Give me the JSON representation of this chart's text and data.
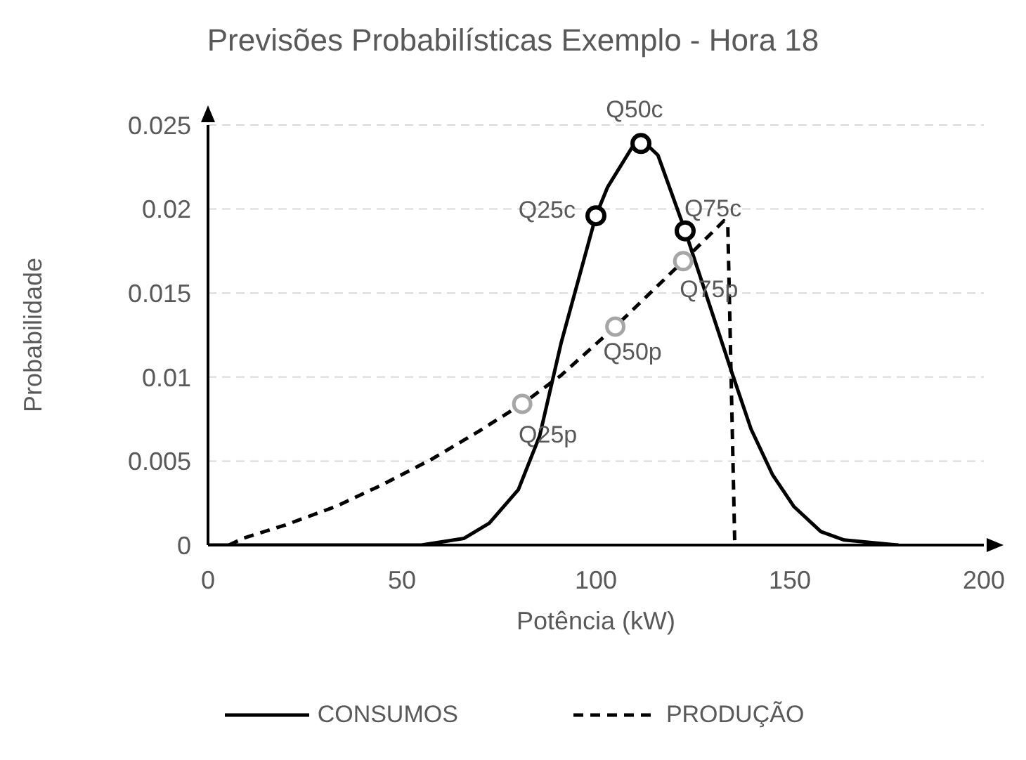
{
  "chart_data": {
    "type": "line",
    "title": "Previsões Probabilísticas Exemplo - Hora 18",
    "xlabel": "Potência (kW)",
    "ylabel": "Probabilidade",
    "xlim": [
      0,
      200
    ],
    "xticks": [
      0,
      50,
      100,
      150,
      200
    ],
    "ylim": [
      0,
      0.025
    ],
    "yticks": [
      0,
      0.005,
      0.01,
      0.015,
      0.02,
      0.025
    ],
    "grid": "y",
    "legend": "bottom",
    "marker": "none",
    "series": [
      {
        "name": "CONSUMOS",
        "color": "#000000",
        "line_style": "solid",
        "x": [
          0,
          55,
          66,
          72.5,
          80,
          85.5,
          91,
          100,
          103,
          111,
          116,
          123,
          129,
          135,
          140,
          145.5,
          151,
          158,
          164,
          178
        ],
        "values": [
          0,
          0,
          0.0004,
          0.0013,
          0.0033,
          0.0065,
          0.012,
          0.0196,
          0.0213,
          0.0243,
          0.0232,
          0.0187,
          0.0145,
          0.0103,
          0.0069,
          0.0042,
          0.0023,
          0.0008,
          0.0003,
          0
        ]
      },
      {
        "name": "PRODUÇÃO",
        "color": "#000000",
        "line_style": "dashed",
        "x": [
          5.4,
          9,
          20,
          33,
          45,
          57.6,
          70,
          81,
          91,
          105,
          122.5,
          133,
          134,
          135.8
        ],
        "values": [
          0,
          0.0004,
          0.0012,
          0.0023,
          0.0036,
          0.0051,
          0.0068,
          0.0084,
          0.0101,
          0.013,
          0.0169,
          0.0193,
          0.019,
          0
        ]
      },
      {
        "type": "scatter",
        "marker": "circle",
        "color": "#000000",
        "x": [
          100,
          111.6,
          123
        ],
        "values": [
          0.0196,
          0.0239,
          0.0187
        ],
        "value_labels": [
          "Q25c",
          "Q50c",
          "Q75c"
        ]
      },
      {
        "type": "scatter",
        "marker": "circle",
        "color": "#a6a6a6",
        "x": [
          81,
          105,
          122.5
        ],
        "values": [
          0.0084,
          0.013,
          0.0169
        ],
        "value_labels": [
          "Q25p",
          "Q50p",
          "Q75p"
        ]
      }
    ]
  }
}
